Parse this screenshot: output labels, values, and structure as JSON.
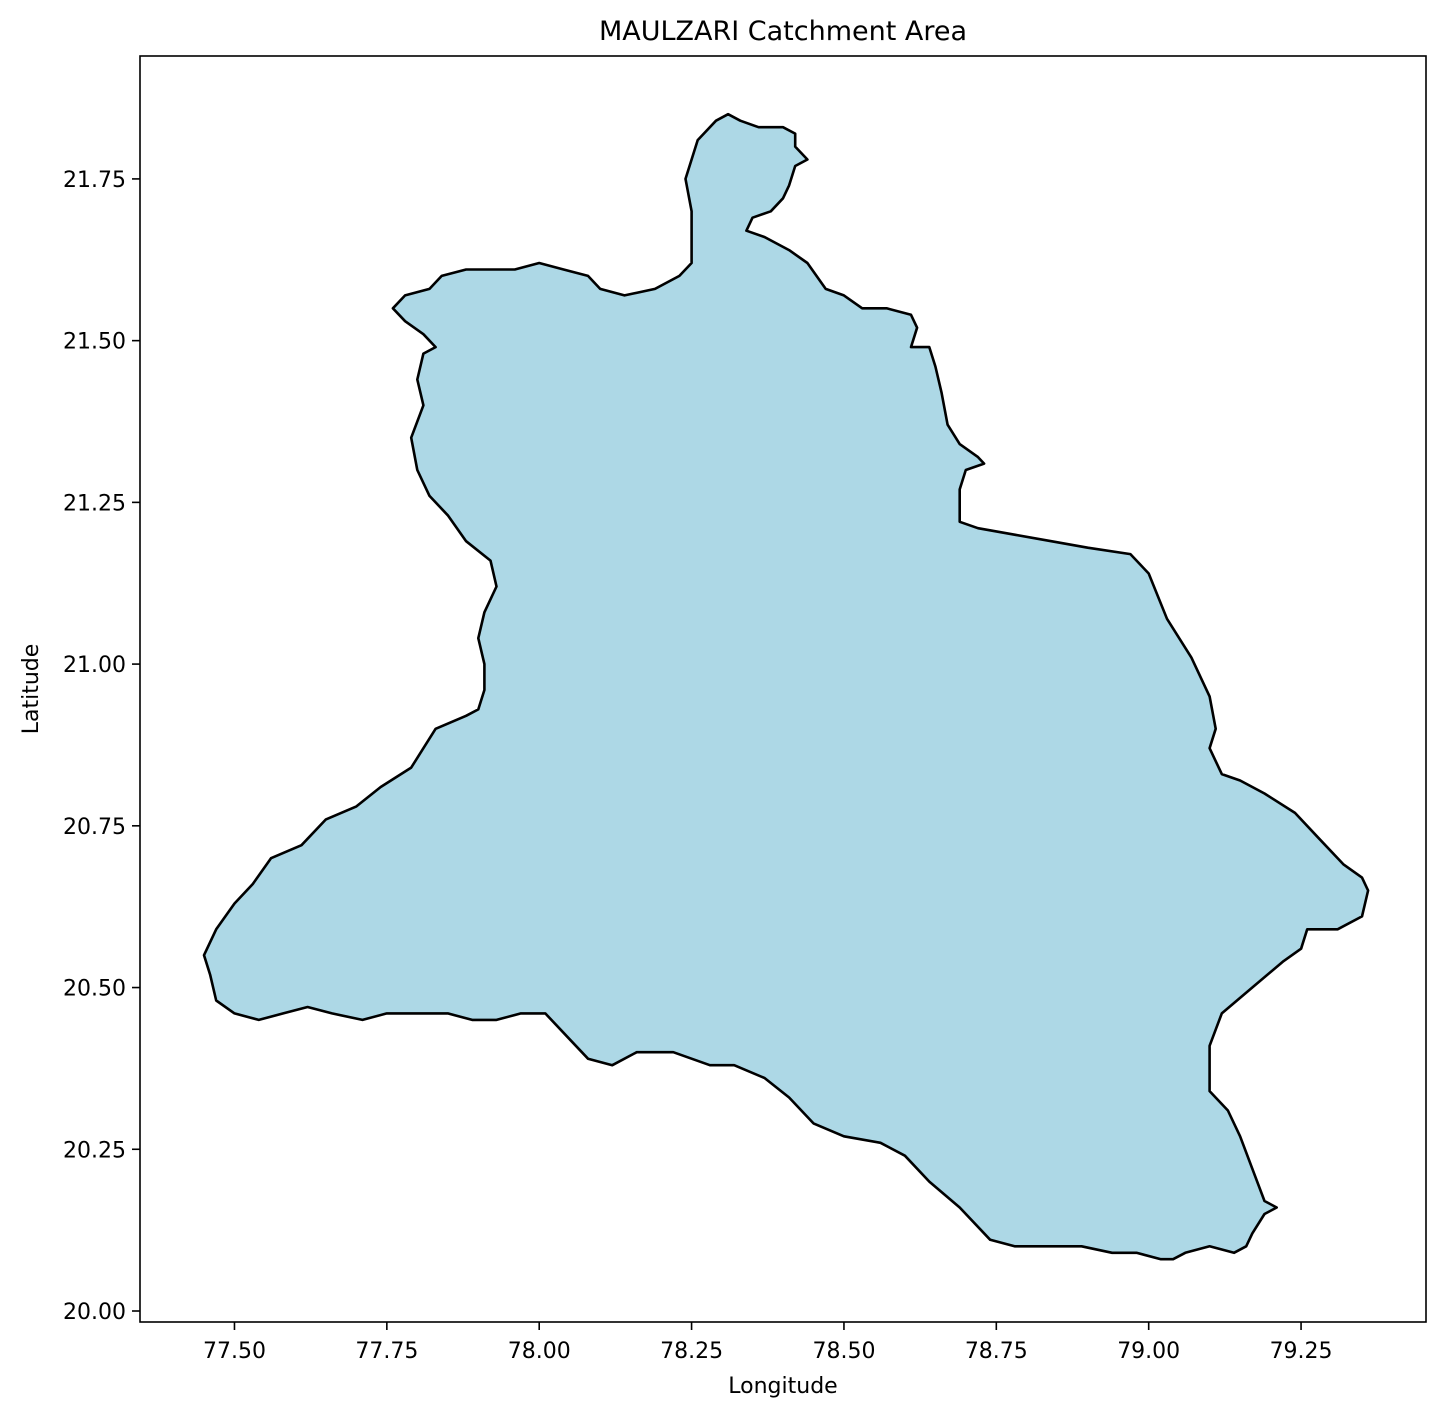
{
  "chart_data": {
    "type": "map",
    "title": "MAULZARI Catchment Area",
    "xlabel": "Longitude",
    "ylabel": "Latitude",
    "xlim": [
      77.345,
      79.455
    ],
    "ylim": [
      19.983,
      21.94
    ],
    "xticks": [
      77.5,
      77.75,
      78.0,
      78.25,
      78.5,
      78.75,
      79.0,
      79.25
    ],
    "xtick_labels": [
      "77.50",
      "77.75",
      "78.00",
      "78.25",
      "78.50",
      "78.75",
      "79.00",
      "79.25"
    ],
    "yticks": [
      20.0,
      20.25,
      20.5,
      20.75,
      21.0,
      21.25,
      21.5,
      21.75
    ],
    "ytick_labels": [
      "20.00",
      "20.25",
      "20.50",
      "20.75",
      "21.00",
      "21.25",
      "21.50",
      "21.75"
    ],
    "grid": false,
    "fill_color": "#add8e6",
    "edge_color": "#000000",
    "boundary": [
      [
        78.26,
        21.81
      ],
      [
        78.29,
        21.84
      ],
      [
        78.31,
        21.85
      ],
      [
        78.33,
        21.84
      ],
      [
        78.36,
        21.83
      ],
      [
        78.4,
        21.83
      ],
      [
        78.42,
        21.82
      ],
      [
        78.42,
        21.8
      ],
      [
        78.44,
        21.78
      ],
      [
        78.42,
        21.77
      ],
      [
        78.41,
        21.74
      ],
      [
        78.4,
        21.72
      ],
      [
        78.38,
        21.7
      ],
      [
        78.35,
        21.69
      ],
      [
        78.34,
        21.67
      ],
      [
        78.37,
        21.66
      ],
      [
        78.41,
        21.64
      ],
      [
        78.44,
        21.62
      ],
      [
        78.47,
        21.58
      ],
      [
        78.5,
        21.57
      ],
      [
        78.53,
        21.55
      ],
      [
        78.57,
        21.55
      ],
      [
        78.61,
        21.54
      ],
      [
        78.62,
        21.52
      ],
      [
        78.61,
        21.49
      ],
      [
        78.64,
        21.49
      ],
      [
        78.65,
        21.46
      ],
      [
        78.66,
        21.42
      ],
      [
        78.67,
        21.37
      ],
      [
        78.69,
        21.34
      ],
      [
        78.72,
        21.32
      ],
      [
        78.73,
        21.31
      ],
      [
        78.7,
        21.3
      ],
      [
        78.69,
        21.27
      ],
      [
        78.69,
        21.22
      ],
      [
        78.72,
        21.21
      ],
      [
        78.78,
        21.2
      ],
      [
        78.84,
        21.19
      ],
      [
        78.9,
        21.18
      ],
      [
        78.97,
        21.17
      ],
      [
        79.0,
        21.14
      ],
      [
        79.03,
        21.07
      ],
      [
        79.07,
        21.01
      ],
      [
        79.1,
        20.95
      ],
      [
        79.11,
        20.9
      ],
      [
        79.1,
        20.87
      ],
      [
        79.12,
        20.83
      ],
      [
        79.15,
        20.82
      ],
      [
        79.19,
        20.8
      ],
      [
        79.24,
        20.77
      ],
      [
        79.28,
        20.73
      ],
      [
        79.32,
        20.69
      ],
      [
        79.35,
        20.67
      ],
      [
        79.36,
        20.65
      ],
      [
        79.35,
        20.61
      ],
      [
        79.31,
        20.59
      ],
      [
        79.26,
        20.59
      ],
      [
        79.25,
        20.56
      ],
      [
        79.22,
        20.54
      ],
      [
        79.17,
        20.5
      ],
      [
        79.12,
        20.46
      ],
      [
        79.1,
        20.41
      ],
      [
        79.1,
        20.34
      ],
      [
        79.13,
        20.31
      ],
      [
        79.15,
        20.27
      ],
      [
        79.17,
        20.22
      ],
      [
        79.19,
        20.17
      ],
      [
        79.21,
        20.16
      ],
      [
        79.19,
        20.15
      ],
      [
        79.17,
        20.12
      ],
      [
        79.16,
        20.1
      ],
      [
        79.14,
        20.09
      ],
      [
        79.1,
        20.1
      ],
      [
        79.06,
        20.09
      ],
      [
        79.04,
        20.08
      ],
      [
        79.02,
        20.08
      ],
      [
        78.98,
        20.09
      ],
      [
        78.94,
        20.09
      ],
      [
        78.89,
        20.1
      ],
      [
        78.84,
        20.1
      ],
      [
        78.78,
        20.1
      ],
      [
        78.74,
        20.11
      ],
      [
        78.69,
        20.16
      ],
      [
        78.64,
        20.2
      ],
      [
        78.6,
        20.24
      ],
      [
        78.56,
        20.26
      ],
      [
        78.5,
        20.27
      ],
      [
        78.45,
        20.29
      ],
      [
        78.41,
        20.33
      ],
      [
        78.37,
        20.36
      ],
      [
        78.32,
        20.38
      ],
      [
        78.28,
        20.38
      ],
      [
        78.22,
        20.4
      ],
      [
        78.16,
        20.4
      ],
      [
        78.12,
        20.38
      ],
      [
        78.08,
        20.39
      ],
      [
        78.05,
        20.42
      ],
      [
        78.01,
        20.46
      ],
      [
        77.97,
        20.46
      ],
      [
        77.93,
        20.45
      ],
      [
        77.89,
        20.45
      ],
      [
        77.85,
        20.46
      ],
      [
        77.8,
        20.46
      ],
      [
        77.75,
        20.46
      ],
      [
        77.71,
        20.45
      ],
      [
        77.66,
        20.46
      ],
      [
        77.62,
        20.47
      ],
      [
        77.58,
        20.46
      ],
      [
        77.54,
        20.45
      ],
      [
        77.5,
        20.46
      ],
      [
        77.47,
        20.48
      ],
      [
        77.46,
        20.52
      ],
      [
        77.45,
        20.55
      ],
      [
        77.47,
        20.59
      ],
      [
        77.5,
        20.63
      ],
      [
        77.53,
        20.66
      ],
      [
        77.56,
        20.7
      ],
      [
        77.61,
        20.72
      ],
      [
        77.65,
        20.76
      ],
      [
        77.7,
        20.78
      ],
      [
        77.74,
        20.81
      ],
      [
        77.79,
        20.84
      ],
      [
        77.81,
        20.87
      ],
      [
        77.83,
        20.9
      ],
      [
        77.88,
        20.92
      ],
      [
        77.9,
        20.93
      ],
      [
        77.91,
        20.96
      ],
      [
        77.91,
        21.0
      ],
      [
        77.9,
        21.04
      ],
      [
        77.91,
        21.08
      ],
      [
        77.93,
        21.12
      ],
      [
        77.92,
        21.16
      ],
      [
        77.88,
        21.19
      ],
      [
        77.85,
        21.23
      ],
      [
        77.82,
        21.26
      ],
      [
        77.8,
        21.3
      ],
      [
        77.79,
        21.35
      ],
      [
        77.81,
        21.4
      ],
      [
        77.8,
        21.44
      ],
      [
        77.81,
        21.48
      ],
      [
        77.83,
        21.49
      ],
      [
        77.81,
        21.51
      ],
      [
        77.78,
        21.53
      ],
      [
        77.76,
        21.55
      ],
      [
        77.78,
        21.57
      ],
      [
        77.82,
        21.58
      ],
      [
        77.84,
        21.6
      ],
      [
        77.88,
        21.61
      ],
      [
        77.92,
        21.61
      ],
      [
        77.96,
        21.61
      ],
      [
        78.0,
        21.62
      ],
      [
        78.04,
        21.61
      ],
      [
        78.08,
        21.6
      ],
      [
        78.1,
        21.58
      ],
      [
        78.14,
        21.57
      ],
      [
        78.19,
        21.58
      ],
      [
        78.23,
        21.6
      ],
      [
        78.25,
        21.62
      ],
      [
        78.25,
        21.66
      ],
      [
        78.25,
        21.7
      ],
      [
        78.24,
        21.75
      ],
      [
        78.25,
        21.78
      ],
      [
        78.26,
        21.81
      ]
    ]
  }
}
